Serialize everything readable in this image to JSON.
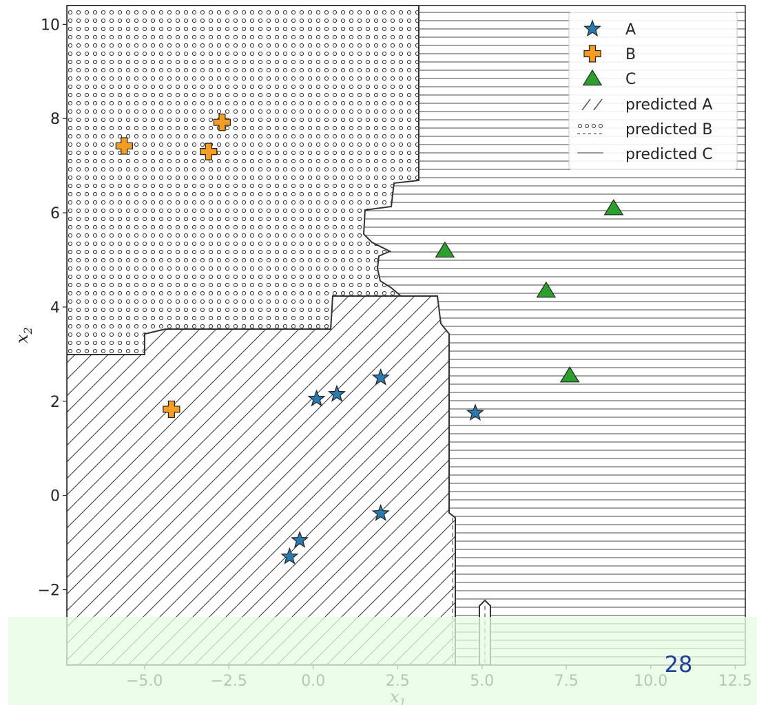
{
  "chart_data": {
    "type": "scatter",
    "title": "",
    "xlabel": "x",
    "xlabel_sub": "1",
    "ylabel": "x",
    "ylabel_sub": "2",
    "xlim": [
      -7.3,
      12.8
    ],
    "ylim": [
      -3.6,
      10.4
    ],
    "xticks": [
      -5.0,
      -2.5,
      0.0,
      2.5,
      5.0,
      7.5,
      10.0,
      12.5
    ],
    "xtick_labels": [
      "−5.0",
      "−2.5",
      "0.0",
      "2.5",
      "5.0",
      "7.5",
      "10.0",
      "12.5"
    ],
    "yticks": [
      -2,
      0,
      2,
      4,
      6,
      8,
      10
    ],
    "ytick_labels": [
      "−2",
      "0",
      "2",
      "4",
      "6",
      "8",
      "10"
    ],
    "grid": false,
    "legend_position": "top-right",
    "series": [
      {
        "name": "A",
        "marker": "star",
        "color": "#2a7ab0",
        "x": [
          -0.7,
          -0.4,
          0.1,
          0.7,
          2.0,
          2.0,
          4.8
        ],
        "y": [
          -1.3,
          -0.95,
          2.05,
          2.15,
          2.5,
          -0.38,
          1.75
        ]
      },
      {
        "name": "B",
        "marker": "plus",
        "color": "#f39d22",
        "x": [
          -5.6,
          -3.1,
          -2.7,
          -4.2
        ],
        "y": [
          7.42,
          7.3,
          7.92,
          1.83
        ]
      },
      {
        "name": "C",
        "marker": "triangle",
        "color": "#2ca02c",
        "x": [
          3.9,
          6.9,
          7.6,
          8.9
        ],
        "y": [
          5.2,
          4.35,
          2.55,
          6.1
        ]
      }
    ],
    "regions": [
      {
        "name": "predicted A",
        "hatch": "diagonal"
      },
      {
        "name": "predicted B",
        "hatch": "dots"
      },
      {
        "name": "predicted C",
        "hatch": "horizontal"
      }
    ]
  },
  "slide_number": "28",
  "colors": {
    "footer_band": "#e6fce1",
    "boundary": "#333333",
    "slide_number": "#1f3f9a"
  }
}
